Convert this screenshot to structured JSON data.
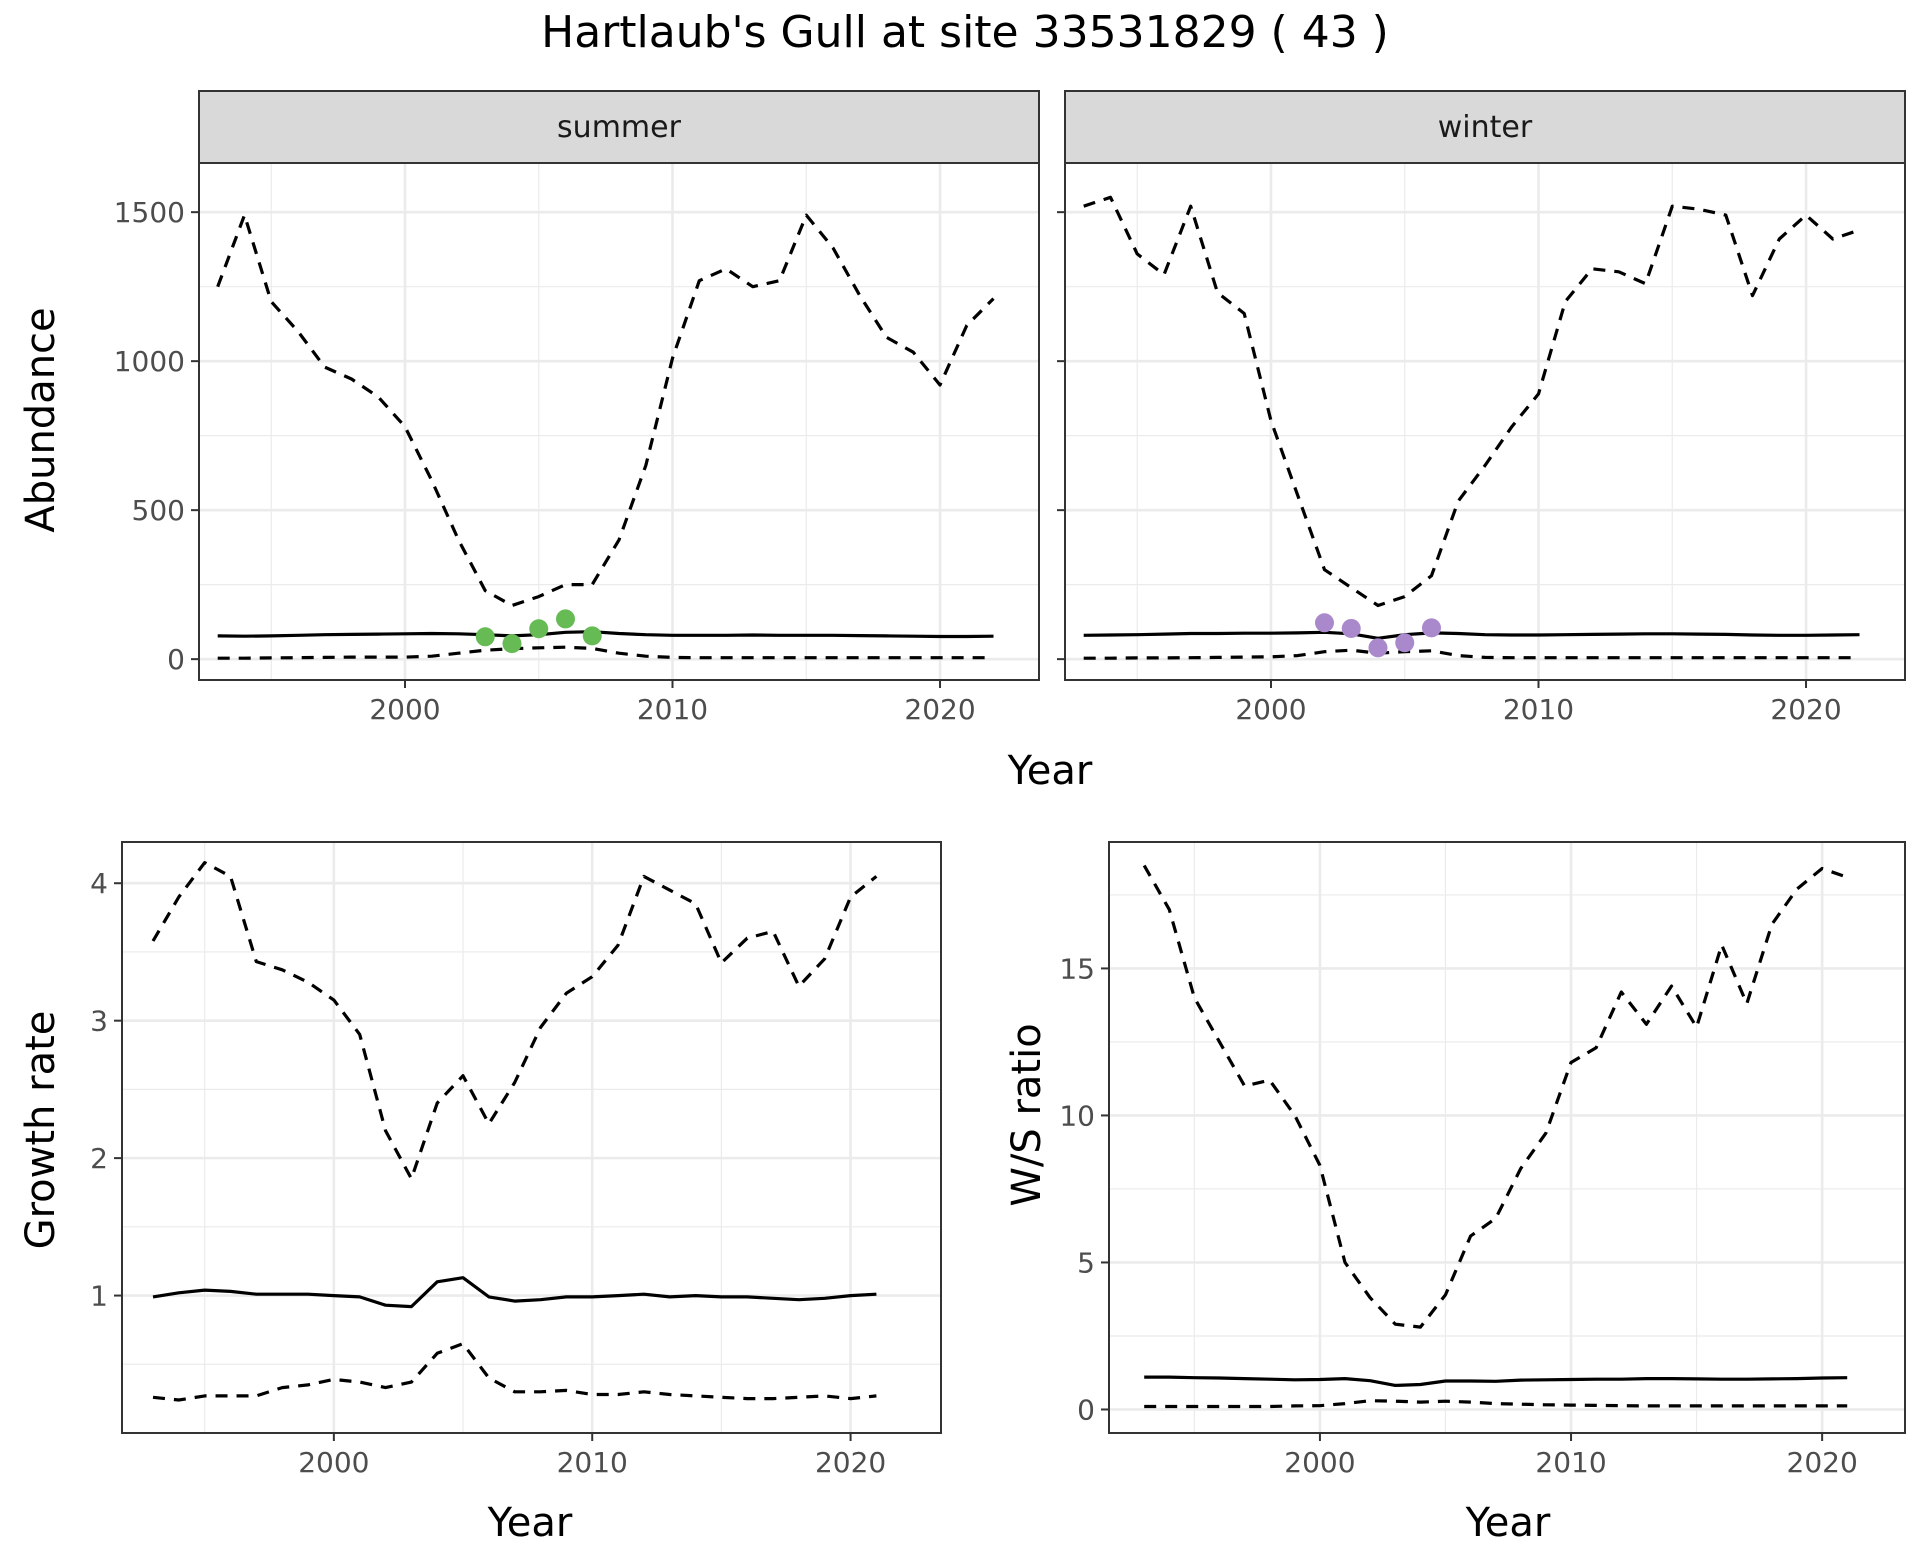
{
  "title": "Hartlaub's Gull at site 33531829 ( 43 )",
  "colors": {
    "summer_points": "#66bb55",
    "winter_points": "#aa88cc",
    "line": "#000000",
    "grid": "#ebebeb",
    "strip_fill": "#d9d9d9",
    "frame": "#333333"
  },
  "chart_data": [
    {
      "type": "line",
      "panel": "summer",
      "strip": "summer",
      "xlabel": "Year",
      "ylabel": "Abundance",
      "xlim": [
        1992.3,
        2023.7
      ],
      "ylim": [
        -70,
        1665
      ],
      "xticks": [
        2000,
        2010,
        2020
      ],
      "yticks": [
        0,
        500,
        1000,
        1500
      ],
      "years": [
        1993,
        1994,
        1995,
        1996,
        1997,
        1998,
        1999,
        2000,
        2001,
        2002,
        2003,
        2004,
        2005,
        2006,
        2007,
        2008,
        2009,
        2010,
        2011,
        2012,
        2013,
        2014,
        2015,
        2016,
        2017,
        2018,
        2019,
        2020,
        2021,
        2022
      ],
      "series": [
        {
          "role": "upper",
          "style": "dashed",
          "values": [
            1250,
            1490,
            1200,
            1100,
            980,
            940,
            880,
            780,
            600,
            400,
            230,
            180,
            210,
            250,
            250,
            400,
            650,
            1010,
            1270,
            1310,
            1250,
            1270,
            1490,
            1380,
            1220,
            1080,
            1030,
            920,
            1120,
            1210
          ]
        },
        {
          "role": "median",
          "style": "solid",
          "values": [
            78,
            77,
            78,
            80,
            82,
            83,
            84,
            85,
            86,
            85,
            82,
            78,
            82,
            90,
            92,
            86,
            82,
            80,
            80,
            80,
            81,
            80,
            80,
            80,
            79,
            78,
            77,
            76,
            76,
            77
          ]
        },
        {
          "role": "lower",
          "style": "dashed",
          "values": [
            3,
            3,
            4,
            5,
            6,
            7,
            7,
            7,
            10,
            20,
            30,
            35,
            38,
            40,
            36,
            20,
            10,
            6,
            5,
            5,
            5,
            5,
            5,
            5,
            5,
            5,
            5,
            5,
            5,
            5
          ]
        }
      ],
      "points": {
        "x": [
          2003,
          2004,
          2005,
          2006,
          2007
        ],
        "y": [
          75,
          52,
          102,
          135,
          78
        ]
      }
    },
    {
      "type": "line",
      "panel": "winter",
      "strip": "winter",
      "xlabel": "",
      "ylabel": "",
      "xlim": [
        1992.3,
        2023.7
      ],
      "ylim": [
        -70,
        1665
      ],
      "xticks": [
        2000,
        2010,
        2020
      ],
      "yticks": [
        0,
        500,
        1000,
        1500
      ],
      "years": [
        1993,
        1994,
        1995,
        1996,
        1997,
        1998,
        1999,
        2000,
        2001,
        2002,
        2003,
        2004,
        2005,
        2006,
        2007,
        2008,
        2009,
        2010,
        2011,
        2012,
        2013,
        2014,
        2015,
        2016,
        2017,
        2018,
        2019,
        2020,
        2021,
        2022
      ],
      "series": [
        {
          "role": "upper",
          "style": "dashed",
          "values": [
            1520,
            1550,
            1360,
            1290,
            1520,
            1230,
            1160,
            800,
            550,
            300,
            240,
            180,
            210,
            280,
            530,
            650,
            780,
            890,
            1200,
            1310,
            1300,
            1260,
            1520,
            1510,
            1490,
            1220,
            1410,
            1490,
            1410,
            1440
          ]
        },
        {
          "role": "median",
          "style": "solid",
          "values": [
            80,
            81,
            82,
            84,
            86,
            86,
            87,
            87,
            88,
            90,
            85,
            70,
            82,
            88,
            86,
            82,
            81,
            81,
            82,
            83,
            84,
            85,
            85,
            84,
            83,
            81,
            80,
            80,
            81,
            82
          ]
        },
        {
          "role": "lower",
          "style": "dashed",
          "values": [
            3,
            3,
            4,
            4,
            5,
            6,
            7,
            8,
            12,
            25,
            30,
            20,
            25,
            28,
            12,
            6,
            5,
            5,
            5,
            5,
            5,
            5,
            5,
            5,
            5,
            5,
            5,
            5,
            5,
            5
          ]
        }
      ],
      "points": {
        "x": [
          2002,
          2003,
          2004,
          2005,
          2006
        ],
        "y": [
          122,
          103,
          38,
          55,
          105
        ]
      }
    },
    {
      "type": "line",
      "panel": "growth",
      "xlabel": "Year",
      "ylabel": "Growth rate",
      "xlim": [
        1991.8,
        2023.5
      ],
      "ylim": [
        0.0,
        4.3
      ],
      "xticks": [
        2000,
        2010,
        2020
      ],
      "yticks": [
        1,
        2,
        3,
        4
      ],
      "years": [
        1993,
        1994,
        1995,
        1996,
        1997,
        1998,
        1999,
        2000,
        2001,
        2002,
        2003,
        2004,
        2005,
        2006,
        2007,
        2008,
        2009,
        2010,
        2011,
        2012,
        2013,
        2014,
        2015,
        2016,
        2017,
        2018,
        2019,
        2020,
        2021
      ],
      "series": [
        {
          "role": "upper",
          "style": "dashed",
          "values": [
            3.58,
            3.9,
            4.15,
            4.05,
            3.43,
            3.37,
            3.28,
            3.15,
            2.9,
            2.2,
            1.85,
            2.4,
            2.6,
            2.25,
            2.55,
            2.95,
            3.2,
            3.32,
            3.55,
            4.05,
            3.95,
            3.85,
            3.42,
            3.6,
            3.65,
            3.25,
            3.45,
            3.9,
            4.05
          ]
        },
        {
          "role": "median",
          "style": "solid",
          "values": [
            0.99,
            1.02,
            1.04,
            1.03,
            1.01,
            1.01,
            1.01,
            1.0,
            0.99,
            0.93,
            0.92,
            1.1,
            1.13,
            0.99,
            0.96,
            0.97,
            0.99,
            0.99,
            1.0,
            1.01,
            0.99,
            1.0,
            0.99,
            0.99,
            0.98,
            0.97,
            0.98,
            1.0,
            1.01
          ]
        },
        {
          "role": "lower",
          "style": "dashed",
          "values": [
            0.26,
            0.24,
            0.27,
            0.27,
            0.27,
            0.33,
            0.35,
            0.39,
            0.37,
            0.33,
            0.37,
            0.58,
            0.65,
            0.4,
            0.3,
            0.3,
            0.31,
            0.28,
            0.28,
            0.3,
            0.28,
            0.27,
            0.26,
            0.25,
            0.25,
            0.26,
            0.27,
            0.25,
            0.27
          ]
        }
      ]
    },
    {
      "type": "line",
      "panel": "ratio",
      "xlabel": "Year",
      "ylabel": "W/S ratio",
      "xlim": [
        1991.6,
        2023.3
      ],
      "ylim": [
        -0.8,
        19.3
      ],
      "xticks": [
        2000,
        2010,
        2020
      ],
      "yticks": [
        0,
        5,
        10,
        15
      ],
      "years": [
        1993,
        1994,
        1995,
        1996,
        1997,
        1998,
        1999,
        2000,
        2001,
        2002,
        2003,
        2004,
        2005,
        2006,
        2007,
        2008,
        2009,
        2010,
        2011,
        2012,
        2013,
        2014,
        2015,
        2016,
        2017,
        2018,
        2019,
        2020,
        2021
      ],
      "series": [
        {
          "role": "upper",
          "style": "dashed",
          "values": [
            18.5,
            17.0,
            14.0,
            12.5,
            11.0,
            11.2,
            10.0,
            8.3,
            5.0,
            3.8,
            2.9,
            2.8,
            3.9,
            5.9,
            6.5,
            8.2,
            9.4,
            11.8,
            12.3,
            14.2,
            13.1,
            14.4,
            13.0,
            15.8,
            13.8,
            16.5,
            17.7,
            18.4,
            18.1
          ]
        },
        {
          "role": "median",
          "style": "solid",
          "values": [
            1.1,
            1.1,
            1.08,
            1.07,
            1.05,
            1.03,
            1.01,
            1.02,
            1.05,
            0.98,
            0.82,
            0.85,
            0.97,
            0.97,
            0.96,
            1.0,
            1.01,
            1.02,
            1.03,
            1.03,
            1.05,
            1.05,
            1.04,
            1.03,
            1.03,
            1.04,
            1.05,
            1.07,
            1.08
          ]
        },
        {
          "role": "lower",
          "style": "dashed",
          "values": [
            0.1,
            0.1,
            0.1,
            0.1,
            0.1,
            0.1,
            0.12,
            0.13,
            0.2,
            0.3,
            0.28,
            0.25,
            0.28,
            0.25,
            0.2,
            0.18,
            0.16,
            0.15,
            0.14,
            0.13,
            0.12,
            0.12,
            0.12,
            0.12,
            0.12,
            0.12,
            0.12,
            0.12,
            0.12
          ]
        }
      ]
    }
  ]
}
